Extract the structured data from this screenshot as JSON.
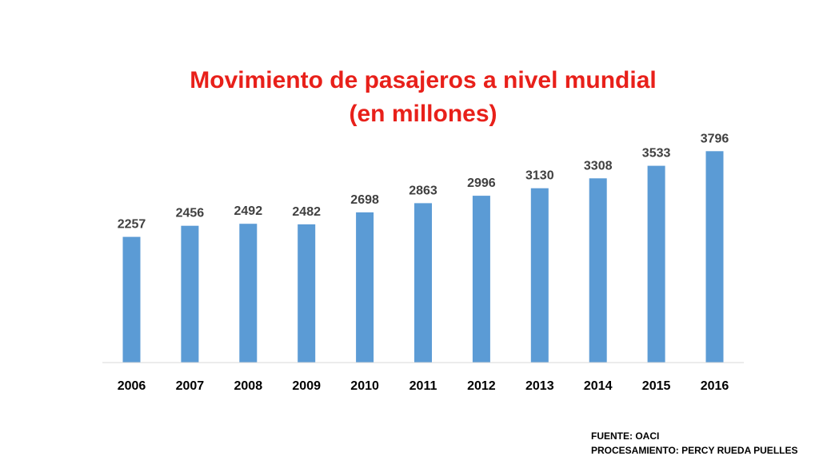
{
  "chart_data": {
    "type": "bar",
    "title": "Movimiento de pasajeros a nivel mundial",
    "subtitle": "(en millones)",
    "categories": [
      "2006",
      "2007",
      "2008",
      "2009",
      "2010",
      "2011",
      "2012",
      "2013",
      "2014",
      "2015",
      "2016"
    ],
    "values": [
      2257,
      2456,
      2492,
      2482,
      2698,
      2863,
      2996,
      3130,
      3308,
      3533,
      3796
    ],
    "bar_color": "#5b9bd5",
    "title_color": "#e8201a",
    "data_labels": true,
    "grid": false,
    "legend": "none",
    "xlabel": "",
    "ylabel": ""
  },
  "footer": {
    "source": "FUENTE: OACI",
    "processing": "PROCESAMIENTO: PERCY RUEDA PUELLES"
  }
}
